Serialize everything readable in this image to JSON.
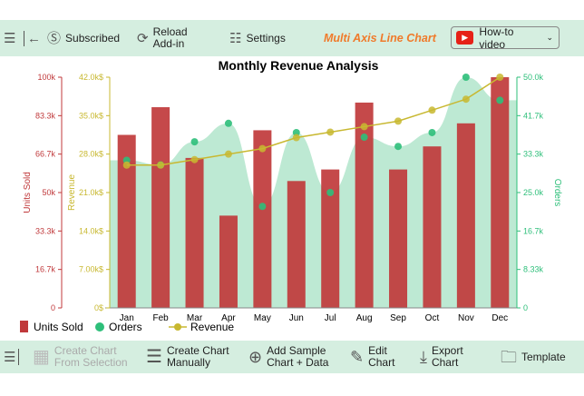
{
  "toolbar": {
    "subscribed": "Subscribed",
    "reload": "Reload",
    "addin": "Add-in",
    "settings": "Settings",
    "app_title": "Multi Axis Line Chart",
    "howto": "How-to video"
  },
  "bottom": {
    "create_sel_1": "Create Chart",
    "create_sel_2": "From Selection",
    "create_man_1": "Create Chart",
    "create_man_2": "Manually",
    "sample_1": "Add Sample",
    "sample_2": "Chart + Data",
    "edit_1": "Edit",
    "edit_2": "Chart",
    "export_1": "Export",
    "export_2": "Chart",
    "template": "Template"
  },
  "colors": {
    "units": "#c0393b",
    "orders": "#2ebf7a",
    "orders_area": "#bde9d3",
    "revenue": "#c8b830",
    "toolbar": "#d5eee0"
  },
  "chart_data": {
    "type": "bar",
    "title": "Monthly Revenue Analysis",
    "categories": [
      "Jan",
      "Feb",
      "Mar",
      "Apr",
      "May",
      "Jun",
      "Jul",
      "Aug",
      "Sep",
      "Oct",
      "Nov",
      "Dec"
    ],
    "series": [
      {
        "name": "Units Sold",
        "type": "bar",
        "axis": "left",
        "values": [
          75000,
          87000,
          65000,
          40000,
          77000,
          55000,
          60000,
          89000,
          60000,
          70000,
          80000,
          100000
        ]
      },
      {
        "name": "Orders",
        "type": "area-scatter",
        "axis": "right",
        "values": [
          32000,
          31000,
          36000,
          40000,
          22000,
          38000,
          25000,
          37000,
          35000,
          38000,
          50000,
          45000
        ]
      },
      {
        "name": "Revenue",
        "type": "line",
        "axis": "revenue",
        "values": [
          26000,
          26000,
          27000,
          28000,
          29000,
          31000,
          32000,
          33000,
          34000,
          36000,
          38000,
          42000
        ]
      }
    ],
    "axes": {
      "units": {
        "label": "Units Sold",
        "range": [
          0,
          100000
        ],
        "ticks": [
          "0",
          "16.7k",
          "33.3k",
          "50k",
          "66.7k",
          "83.3k",
          "100k"
        ]
      },
      "revenue": {
        "label": "Revenue",
        "range": [
          0,
          42000
        ],
        "ticks": [
          "0$",
          "7.00k$",
          "14.0k$",
          "21.0k$",
          "28.0k$",
          "35.0k$",
          "42.0k$"
        ]
      },
      "orders": {
        "label": "Orders",
        "range": [
          0,
          50000
        ],
        "ticks": [
          "0",
          "8.33k",
          "16.7k",
          "25.0k",
          "33.3k",
          "41.7k",
          "50.0k"
        ]
      }
    },
    "legend": {
      "placement": "bottom-left",
      "items": [
        "Units Sold",
        "Orders",
        "Revenue"
      ]
    }
  }
}
